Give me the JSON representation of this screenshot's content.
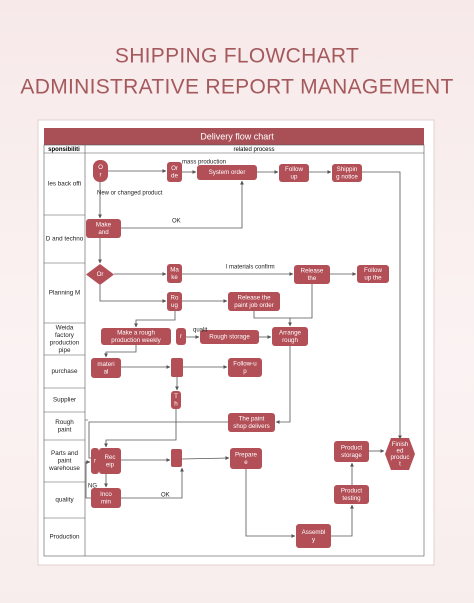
{
  "header": {
    "title_line1": "SHIPPING FLOWCHART",
    "title_line2": "ADMINISTRATIVE REPORT MANAGEMENT"
  },
  "table": {
    "title": "Delivery flow chart",
    "columns": [
      "sponsibiliti",
      "related process"
    ],
    "rows": [
      {
        "lines": [
          "les back offi"
        ]
      },
      {
        "lines": [
          "D and techno"
        ]
      },
      {
        "lines": [
          "Planning M"
        ]
      },
      {
        "lines": [
          "Weida",
          "factory",
          "production",
          "pipe"
        ]
      },
      {
        "lines": [
          "purchase"
        ]
      },
      {
        "lines": [
          "Supplier"
        ]
      },
      {
        "lines": [
          "Rough",
          "paint"
        ]
      },
      {
        "lines": [
          "Parts and",
          "paint",
          "warehouse"
        ]
      },
      {
        "lines": [
          "quality"
        ]
      },
      {
        "lines": [
          "Production"
        ]
      }
    ]
  },
  "nodes": [
    {
      "lines": [
        "O",
        "r"
      ]
    },
    {
      "lines": [
        "Or",
        "de"
      ]
    },
    {
      "lines": [
        "System order"
      ]
    },
    {
      "lines": [
        "Follow",
        "up"
      ]
    },
    {
      "lines": [
        "Shippin",
        "g notice"
      ]
    },
    {
      "lines": [
        "Make",
        "and"
      ]
    },
    {
      "lines": [
        "Or"
      ]
    },
    {
      "lines": [
        "Ma",
        "ke"
      ]
    },
    {
      "lines": [
        "Release",
        "the"
      ]
    },
    {
      "lines": [
        "Follow",
        "up the"
      ]
    },
    {
      "lines": [
        "Ro",
        "ug"
      ]
    },
    {
      "lines": [
        "Release the",
        "paint job order"
      ]
    },
    {
      "lines": [
        "Make a rough",
        "production weekly"
      ]
    },
    {
      "lines": [
        "r"
      ]
    },
    {
      "lines": [
        "Rough storage"
      ]
    },
    {
      "lines": [
        "Arrange",
        "rough"
      ]
    },
    {
      "lines": [
        "materi",
        "al"
      ]
    },
    {
      "lines": [
        "Follow-u",
        "p"
      ]
    },
    {
      "lines": [
        "T",
        "h"
      ]
    },
    {
      "lines": [
        "The paint",
        "shop delivers"
      ]
    },
    {
      "lines": [
        "r"
      ]
    },
    {
      "lines": [
        "Rec",
        "eip"
      ]
    },
    {
      "lines": [
        "Prepare",
        "e"
      ]
    },
    {
      "lines": [
        "Product",
        "storage"
      ]
    },
    {
      "lines": [
        "Finish",
        "ed",
        "produc",
        "t"
      ]
    },
    {
      "lines": [
        "Product",
        "testing"
      ]
    },
    {
      "lines": [
        "Inco",
        "min"
      ]
    },
    {
      "lines": [
        "Assembl",
        "y"
      ]
    }
  ],
  "annotations": [
    "mass production",
    "New or changed product",
    "OK",
    "l materials confirm",
    "qualit",
    "NG",
    "OK"
  ]
}
